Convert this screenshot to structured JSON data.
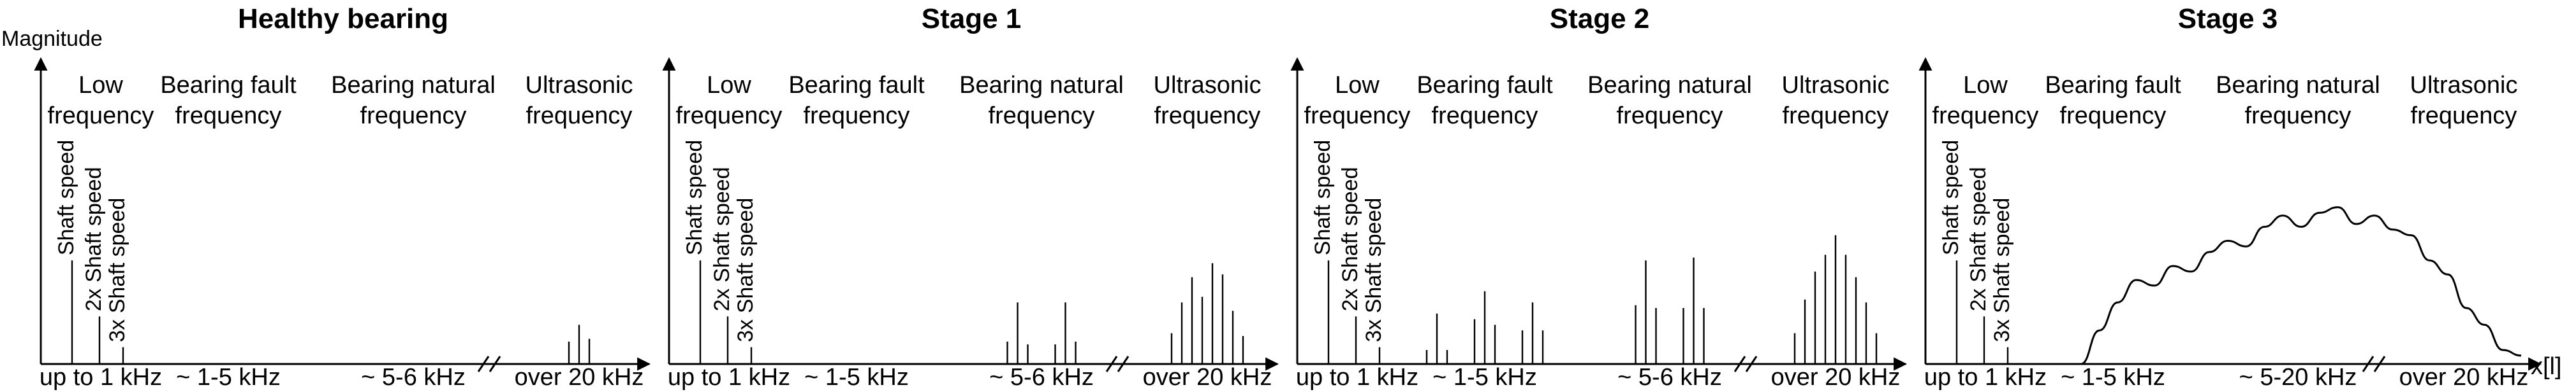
{
  "y_axis_label": "Magnitude",
  "x_axis_label": "x[l]",
  "bands": [
    {
      "top": "Low",
      "bottom": "frequency"
    },
    {
      "top": "Bearing fault",
      "bottom": "frequency"
    },
    {
      "top": "Bearing natural",
      "bottom": "frequency"
    },
    {
      "top": "Ultrasonic",
      "bottom": "frequency"
    }
  ],
  "spike_labels": [
    "Shaft speed",
    "2x Shaft speed",
    "3x Shaft speed"
  ],
  "panels": [
    {
      "title": "Healthy bearing",
      "axis_labels": [
        "up to 1 kHz",
        "~ 1-5 kHz",
        "~ 5-6 kHz",
        "over 20 kHz"
      ],
      "spike_levels": [
        0.37,
        0.17,
        0.06
      ],
      "clusters": [
        {
          "band": 3,
          "levels": [
            0.08,
            0.14,
            0.09
          ]
        }
      ]
    },
    {
      "title": "Stage 1",
      "axis_labels": [
        "up to 1 kHz",
        "~ 1-5 kHz",
        "~ 5-6 kHz",
        "over 20 kHz"
      ],
      "spike_levels": [
        0.37,
        0.17,
        0.06
      ],
      "clusters": [
        {
          "band": 2,
          "levels": [
            0.08,
            0.22,
            0.07
          ]
        },
        {
          "band": 2,
          "levels": [
            0.07,
            0.22,
            0.08
          ]
        },
        {
          "band": 3,
          "levels": [
            0.11,
            0.22,
            0.31,
            0.24,
            0.36,
            0.32,
            0.19,
            0.1
          ]
        }
      ]
    },
    {
      "title": "Stage 2",
      "axis_labels": [
        "up to 1 kHz",
        "~ 1-5 kHz",
        "~ 5-6 kHz",
        "over 20 kHz"
      ],
      "spike_levels": [
        0.37,
        0.17,
        0.06
      ],
      "clusters": [
        {
          "band": 1,
          "levels": [
            0.05,
            0.18,
            0.05
          ]
        },
        {
          "band": 1,
          "levels": [
            0.16,
            0.26,
            0.14
          ]
        },
        {
          "band": 1,
          "levels": [
            0.12,
            0.22,
            0.12
          ]
        },
        {
          "band": 2,
          "levels": [
            0.21,
            0.37,
            0.2
          ]
        },
        {
          "band": 2,
          "levels": [
            0.2,
            0.38,
            0.2
          ]
        },
        {
          "band": 3,
          "levels": [
            0.11,
            0.23,
            0.33,
            0.39,
            0.46,
            0.39,
            0.31,
            0.22,
            0.11
          ]
        }
      ]
    },
    {
      "title": "Stage 3",
      "axis_labels": [
        "up to 1 kHz",
        "~ 1-5 kHz",
        "~ 5-20 kHz",
        "over 20 kHz"
      ],
      "spike_levels": [
        0.37,
        0.17,
        0.06
      ],
      "envelope": [
        0.0,
        0.12,
        0.22,
        0.3,
        0.28,
        0.35,
        0.33,
        0.4,
        0.44,
        0.42,
        0.49,
        0.53,
        0.49,
        0.54,
        0.56,
        0.5,
        0.53,
        0.48,
        0.46,
        0.37,
        0.32,
        0.2,
        0.14,
        0.05,
        0.03
      ]
    }
  ]
}
